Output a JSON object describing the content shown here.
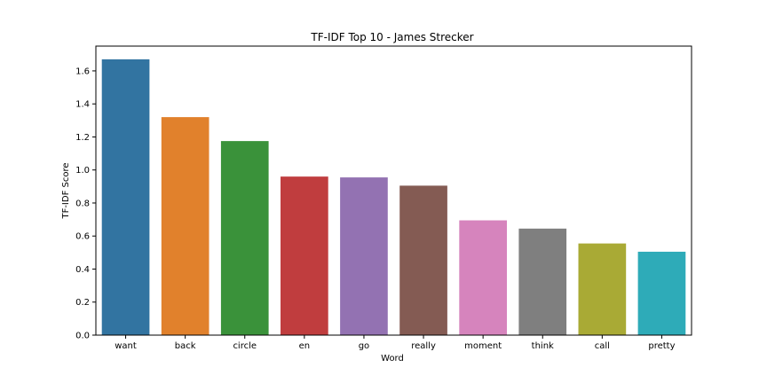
{
  "chart_data": {
    "type": "bar",
    "title": "TF-IDF Top 10 - James Strecker",
    "xlabel": "Word",
    "ylabel": "TF-IDF Score",
    "categories": [
      "want",
      "back",
      "circle",
      "en",
      "go",
      "really",
      "moment",
      "think",
      "call",
      "pretty"
    ],
    "values": [
      1.67,
      1.32,
      1.175,
      0.96,
      0.955,
      0.905,
      0.695,
      0.645,
      0.555,
      0.505
    ],
    "colors": [
      "#3274a1",
      "#e1812c",
      "#3a923a",
      "#c03d3e",
      "#9372b2",
      "#845b53",
      "#d684bd",
      "#7f7f7f",
      "#a9aa35",
      "#2eabb8"
    ],
    "ylim": [
      0,
      1.75
    ],
    "yticks": [
      "0.0",
      "0.2",
      "0.4",
      "0.6",
      "0.8",
      "1.0",
      "1.2",
      "1.4",
      "1.6"
    ],
    "grid": false,
    "legend": "none"
  }
}
